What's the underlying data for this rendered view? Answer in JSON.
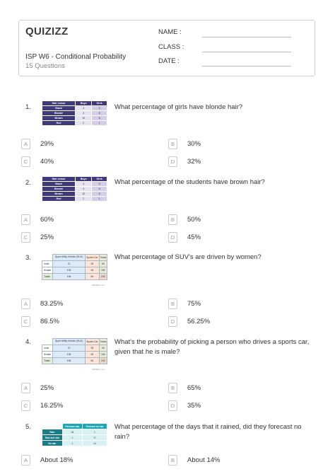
{
  "header": {
    "logo": "QUIZIZZ",
    "title": "ISP W6 - Conditional Probability",
    "subtitle": "15 Questions",
    "fields": [
      "NAME :",
      "CLASS :",
      "DATE :"
    ]
  },
  "hair_table": {
    "headers": [
      "Hair colour",
      "Boys",
      "Girls"
    ],
    "rows": [
      [
        "Black",
        "4",
        "5"
      ],
      [
        "Blonde",
        "4",
        "6"
      ],
      [
        "Brown",
        "10",
        "8"
      ],
      [
        "Red",
        "2",
        "1"
      ]
    ]
  },
  "car_table": {
    "headers": [
      "",
      "Sport Utility Vehicle (SUV)",
      "Sports Car",
      "Totals"
    ],
    "rows": [
      [
        "male",
        "21",
        "39",
        "60"
      ],
      [
        "female",
        "135",
        "45",
        "180"
      ],
      [
        "Totals",
        "156",
        "84",
        "240"
      ]
    ],
    "note": "MathBits.com"
  },
  "rain_table": {
    "headers": [
      "",
      "Forecast rain",
      "Forecast no rain"
    ],
    "rows": [
      [
        "Rain",
        "18",
        "1"
      ],
      [
        "Rain and rain",
        "1",
        "17"
      ],
      [
        "No rain",
        "2",
        "14"
      ]
    ]
  },
  "questions": [
    {
      "num": "1.",
      "text": "What percentage of girls have blonde hair?",
      "options": [
        {
          "letter": "A",
          "text": "29%"
        },
        {
          "letter": "B",
          "text": "30%"
        },
        {
          "letter": "C",
          "text": "40%"
        },
        {
          "letter": "D",
          "text": "32%"
        }
      ]
    },
    {
      "num": "2.",
      "text": "What percentage of the students have brown hair?",
      "options": [
        {
          "letter": "A",
          "text": "60%"
        },
        {
          "letter": "B",
          "text": "50%"
        },
        {
          "letter": "C",
          "text": "25%"
        },
        {
          "letter": "D",
          "text": "45%"
        }
      ]
    },
    {
      "num": "3.",
      "text": "What percentage of SUV's are driven by women?",
      "options": [
        {
          "letter": "A",
          "text": "83.25%"
        },
        {
          "letter": "B",
          "text": "75%"
        },
        {
          "letter": "C",
          "text": "86.5%"
        },
        {
          "letter": "D",
          "text": "56.25%"
        }
      ]
    },
    {
      "num": "4.",
      "text": "What's the probability of picking a person who drives a sports car, given that he is male?",
      "options": [
        {
          "letter": "A",
          "text": "25%"
        },
        {
          "letter": "B",
          "text": "65%"
        },
        {
          "letter": "C",
          "text": "16.25%"
        },
        {
          "letter": "D",
          "text": "35%"
        }
      ]
    },
    {
      "num": "5.",
      "text": "What percentage of the days that it rained, did they forecast no rain?",
      "options": [
        {
          "letter": "A",
          "text": "About 18%"
        },
        {
          "letter": "B",
          "text": "About 14%"
        }
      ]
    }
  ]
}
